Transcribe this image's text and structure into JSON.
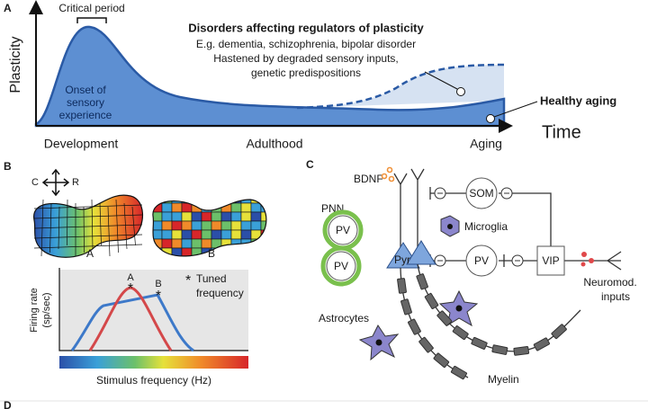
{
  "panel_a": {
    "label": "A",
    "y_axis": "Plasticity",
    "x_axis": "Time",
    "critical_period": "Critical period",
    "onset": [
      "Onset of",
      "sensory",
      "experience"
    ],
    "disorders": {
      "title": "Disorders affecting regulators of plasticity",
      "lines": [
        "E.g. dementia, schizophrenia, bipolar disorder",
        "Hastened by degraded sensory inputs,",
        "genetic predispositions"
      ]
    },
    "healthy_aging": "Healthy aging",
    "stages": [
      "Development",
      "Adulthood",
      "Aging"
    ]
  },
  "panel_b": {
    "label": "B",
    "compass": [
      "C",
      "R"
    ],
    "maps": [
      "A",
      "B"
    ],
    "curves": [
      "A",
      "B"
    ],
    "tuned_marker": "*",
    "tuned_legend": [
      "Tuned",
      "frequency"
    ],
    "y_axis": [
      "Firing rate",
      "(sp/sec)"
    ],
    "x_axis": "Stimulus frequency (Hz)"
  },
  "panel_c": {
    "label": "C",
    "bdnf": "BDNF",
    "pnn": "PNN",
    "pv": "PV",
    "som": "SOM",
    "vip": "VIP",
    "microglia": "Microglia",
    "pyr": "Pyr",
    "astrocytes": "Astrocytes",
    "myelin": "Myelin",
    "neuromod": [
      "Neuromod.",
      "inputs"
    ]
  },
  "panel_d": {
    "label": "D"
  }
}
